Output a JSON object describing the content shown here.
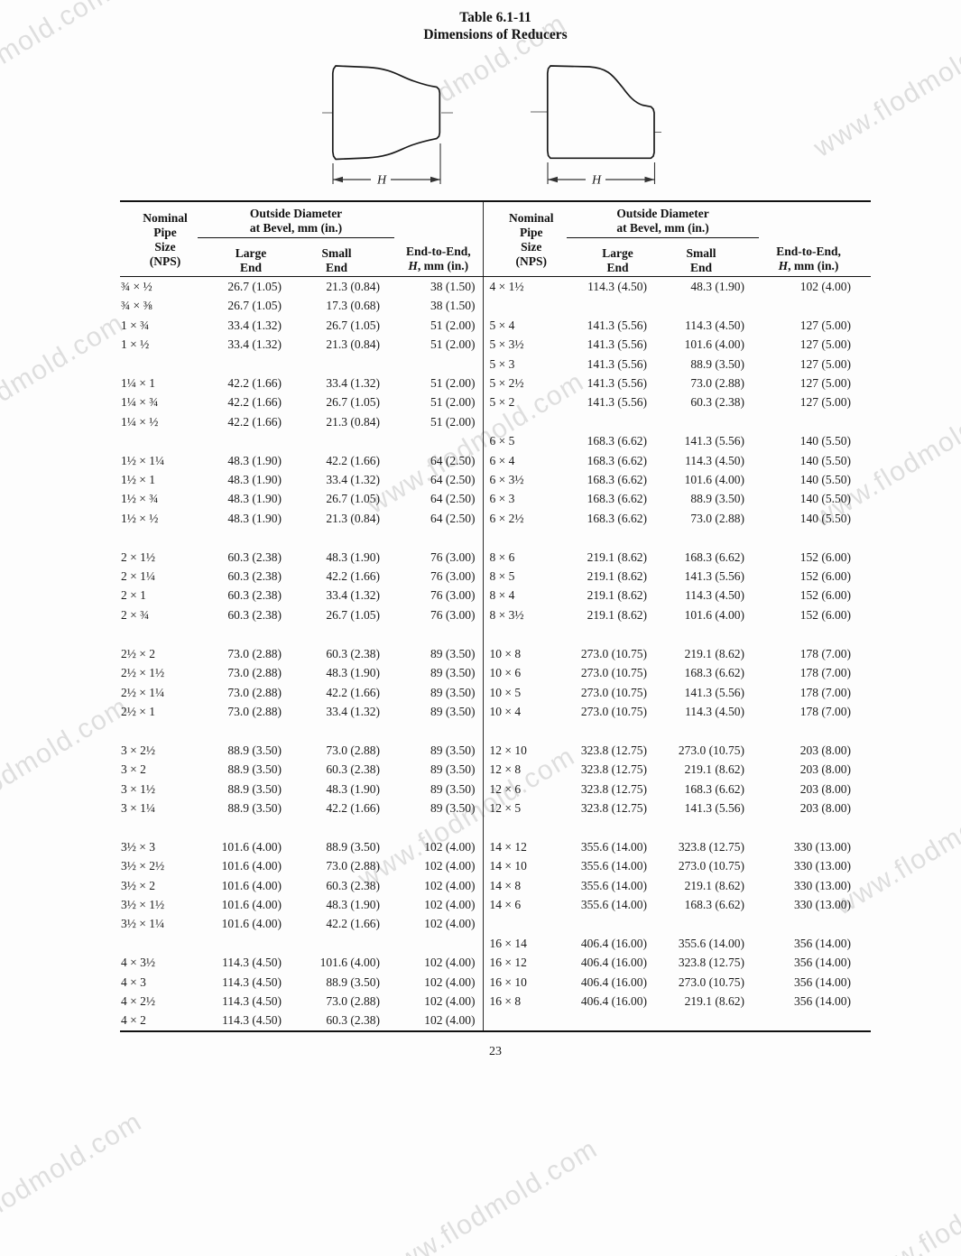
{
  "title": {
    "line1": "Table 6.1-11",
    "line2": "Dimensions of Reducers"
  },
  "watermark": {
    "text": "www.flodmold.com",
    "color": "#dedede"
  },
  "diagram": {
    "h_label": "H"
  },
  "page": {
    "number": "23"
  },
  "table": {
    "header": {
      "nps": "Nominal\nPipe\nSize\n(NPS)",
      "od_group": "Outside Diameter\nat Bevel, mm (in.)",
      "large": "Large\nEnd",
      "small": "Small\nEnd",
      "end_line1": "End-to-End,",
      "end_h": "H",
      "end_rest": ", mm (in.)"
    },
    "rows": [
      [
        "¾ × ½",
        "26.7 (1.05)",
        "21.3 (0.84)",
        "38 (1.50)",
        "4 × 1½",
        "114.3 (4.50)",
        "48.3 (1.90)",
        "102 (4.00)"
      ],
      [
        "¾ × ⅜",
        "26.7 (1.05)",
        "17.3 (0.68)",
        "38 (1.50)",
        "",
        "",
        "",
        ""
      ],
      [
        "1 × ¾",
        "33.4 (1.32)",
        "26.7 (1.05)",
        "51 (2.00)",
        "5 × 4",
        "141.3 (5.56)",
        "114.3 (4.50)",
        "127 (5.00)"
      ],
      [
        "1 × ½",
        "33.4 (1.32)",
        "21.3 (0.84)",
        "51 (2.00)",
        "5 × 3½",
        "141.3 (5.56)",
        "101.6 (4.00)",
        "127 (5.00)"
      ],
      [
        "",
        "",
        "",
        "",
        "5 × 3",
        "141.3 (5.56)",
        "88.9 (3.50)",
        "127 (5.00)"
      ],
      [
        "1¼ × 1",
        "42.2 (1.66)",
        "33.4 (1.32)",
        "51 (2.00)",
        "5 × 2½",
        "141.3 (5.56)",
        "73.0 (2.88)",
        "127 (5.00)"
      ],
      [
        "1¼ × ¾",
        "42.2 (1.66)",
        "26.7 (1.05)",
        "51 (2.00)",
        "5 × 2",
        "141.3 (5.56)",
        "60.3 (2.38)",
        "127 (5.00)"
      ],
      [
        "1¼ × ½",
        "42.2 (1.66)",
        "21.3 (0.84)",
        "51 (2.00)",
        "",
        "",
        "",
        ""
      ],
      [
        "",
        "",
        "",
        "",
        "6 × 5",
        "168.3 (6.62)",
        "141.3 (5.56)",
        "140 (5.50)"
      ],
      [
        "1½ × 1¼",
        "48.3 (1.90)",
        "42.2 (1.66)",
        "64 (2.50)",
        "6 × 4",
        "168.3 (6.62)",
        "114.3 (4.50)",
        "140 (5.50)"
      ],
      [
        "1½ × 1",
        "48.3 (1.90)",
        "33.4 (1.32)",
        "64 (2.50)",
        "6 × 3½",
        "168.3 (6.62)",
        "101.6 (4.00)",
        "140 (5.50)"
      ],
      [
        "1½ × ¾",
        "48.3 (1.90)",
        "26.7 (1.05)",
        "64 (2.50)",
        "6 × 3",
        "168.3 (6.62)",
        "88.9 (3.50)",
        "140 (5.50)"
      ],
      [
        "1½ × ½",
        "48.3 (1.90)",
        "21.3 (0.84)",
        "64 (2.50)",
        "6 × 2½",
        "168.3 (6.62)",
        "73.0 (2.88)",
        "140 (5.50)"
      ],
      [
        "",
        "",
        "",
        "",
        "",
        "",
        "",
        ""
      ],
      [
        "2 × 1½",
        "60.3 (2.38)",
        "48.3 (1.90)",
        "76 (3.00)",
        "8 × 6",
        "219.1 (8.62)",
        "168.3 (6.62)",
        "152 (6.00)"
      ],
      [
        "2 × 1¼",
        "60.3 (2.38)",
        "42.2 (1.66)",
        "76 (3.00)",
        "8 × 5",
        "219.1 (8.62)",
        "141.3 (5.56)",
        "152 (6.00)"
      ],
      [
        "2 × 1",
        "60.3 (2.38)",
        "33.4 (1.32)",
        "76 (3.00)",
        "8 × 4",
        "219.1 (8.62)",
        "114.3 (4.50)",
        "152 (6.00)"
      ],
      [
        "2 × ¾",
        "60.3 (2.38)",
        "26.7 (1.05)",
        "76 (3.00)",
        "8 × 3½",
        "219.1 (8.62)",
        "101.6 (4.00)",
        "152 (6.00)"
      ],
      [
        "",
        "",
        "",
        "",
        "",
        "",
        "",
        ""
      ],
      [
        "2½ × 2",
        "73.0 (2.88)",
        "60.3 (2.38)",
        "89 (3.50)",
        "10 × 8",
        "273.0 (10.75)",
        "219.1 (8.62)",
        "178 (7.00)"
      ],
      [
        "2½ × 1½",
        "73.0 (2.88)",
        "48.3 (1.90)",
        "89 (3.50)",
        "10 × 6",
        "273.0 (10.75)",
        "168.3 (6.62)",
        "178 (7.00)"
      ],
      [
        "2½ × 1¼",
        "73.0 (2.88)",
        "42.2 (1.66)",
        "89 (3.50)",
        "10 × 5",
        "273.0 (10.75)",
        "141.3 (5.56)",
        "178 (7.00)"
      ],
      [
        "2½ × 1",
        "73.0 (2.88)",
        "33.4 (1.32)",
        "89 (3.50)",
        "10 × 4",
        "273.0 (10.75)",
        "114.3 (4.50)",
        "178 (7.00)"
      ],
      [
        "",
        "",
        "",
        "",
        "",
        "",
        "",
        ""
      ],
      [
        "3 × 2½",
        "88.9 (3.50)",
        "73.0 (2.88)",
        "89 (3.50)",
        "12 × 10",
        "323.8 (12.75)",
        "273.0 (10.75)",
        "203 (8.00)"
      ],
      [
        "3 × 2",
        "88.9 (3.50)",
        "60.3 (2.38)",
        "89 (3.50)",
        "12 × 8",
        "323.8 (12.75)",
        "219.1 (8.62)",
        "203 (8.00)"
      ],
      [
        "3 × 1½",
        "88.9 (3.50)",
        "48.3 (1.90)",
        "89 (3.50)",
        "12 × 6",
        "323.8 (12.75)",
        "168.3 (6.62)",
        "203 (8.00)"
      ],
      [
        "3 × 1¼",
        "88.9 (3.50)",
        "42.2 (1.66)",
        "89 (3.50)",
        "12 × 5",
        "323.8 (12.75)",
        "141.3 (5.56)",
        "203 (8.00)"
      ],
      [
        "",
        "",
        "",
        "",
        "",
        "",
        "",
        ""
      ],
      [
        "3½ × 3",
        "101.6 (4.00)",
        "88.9 (3.50)",
        "102 (4.00)",
        "14 × 12",
        "355.6 (14.00)",
        "323.8 (12.75)",
        "330 (13.00)"
      ],
      [
        "3½ × 2½",
        "101.6 (4.00)",
        "73.0 (2.88)",
        "102 (4.00)",
        "14 × 10",
        "355.6 (14.00)",
        "273.0 (10.75)",
        "330 (13.00)"
      ],
      [
        "3½ × 2",
        "101.6 (4.00)",
        "60.3 (2.38)",
        "102 (4.00)",
        "14 × 8",
        "355.6 (14.00)",
        "219.1 (8.62)",
        "330 (13.00)"
      ],
      [
        "3½ × 1½",
        "101.6 (4.00)",
        "48.3 (1.90)",
        "102 (4.00)",
        "14 × 6",
        "355.6 (14.00)",
        "168.3 (6.62)",
        "330 (13.00)"
      ],
      [
        "3½ × 1¼",
        "101.6 (4.00)",
        "42.2 (1.66)",
        "102 (4.00)",
        "",
        "",
        "",
        ""
      ],
      [
        "",
        "",
        "",
        "",
        "16 × 14",
        "406.4 (16.00)",
        "355.6 (14.00)",
        "356 (14.00)"
      ],
      [
        "4 × 3½",
        "114.3 (4.50)",
        "101.6 (4.00)",
        "102 (4.00)",
        "16 × 12",
        "406.4 (16.00)",
        "323.8 (12.75)",
        "356 (14.00)"
      ],
      [
        "4 × 3",
        "114.3 (4.50)",
        "88.9 (3.50)",
        "102 (4.00)",
        "16 × 10",
        "406.4 (16.00)",
        "273.0 (10.75)",
        "356 (14.00)"
      ],
      [
        "4 × 2½",
        "114.3 (4.50)",
        "73.0 (2.88)",
        "102 (4.00)",
        "16 × 8",
        "406.4 (16.00)",
        "219.1 (8.62)",
        "356 (14.00)"
      ],
      [
        "4 × 2",
        "114.3 (4.50)",
        "60.3 (2.38)",
        "102 (4.00)",
        "",
        "",
        "",
        ""
      ]
    ]
  }
}
